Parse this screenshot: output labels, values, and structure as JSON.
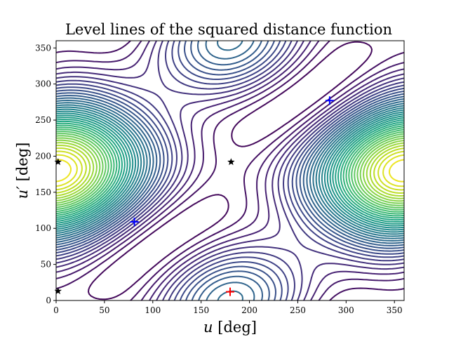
{
  "chart_data": {
    "type": "contour",
    "title": "Level lines of the squared distance function",
    "xlabel": "u [deg]",
    "ylabel": "u′ [deg]",
    "xlim": [
      0,
      360
    ],
    "ylim": [
      0,
      360
    ],
    "xticks": [
      0,
      50,
      100,
      150,
      200,
      250,
      300,
      350
    ],
    "yticks": [
      0,
      50,
      100,
      150,
      200,
      250,
      300,
      350
    ],
    "grid": false,
    "colormap": "viridis",
    "levels": 40,
    "function_description": "",
    "markers": [
      {
        "shape": "plus",
        "color": "#0000ff",
        "x": 81,
        "y": 109
      },
      {
        "shape": "plus",
        "color": "#0000ff",
        "x": 283,
        "y": 277
      },
      {
        "shape": "plus",
        "color": "#ff0000",
        "x": 180,
        "y": 12
      },
      {
        "shape": "star",
        "color": "#000000",
        "x": 181,
        "y": 192
      },
      {
        "shape": "star",
        "color": "#000000",
        "x": 2,
        "y": 192
      },
      {
        "shape": "star",
        "color": "#000000",
        "x": 2,
        "y": 13
      }
    ]
  }
}
